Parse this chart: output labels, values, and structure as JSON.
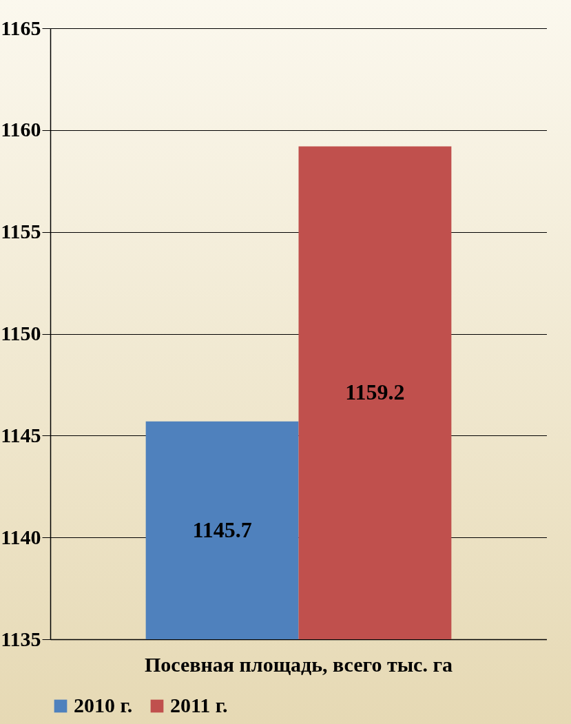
{
  "chart_data": {
    "type": "bar",
    "categories": [
      "Посевная площадь, всего тыс. га"
    ],
    "series": [
      {
        "name": "2010 г.",
        "color": "#4f81bd",
        "values": [
          1145.7
        ]
      },
      {
        "name": "2011 г.",
        "color": "#c0504d",
        "values": [
          1159.2
        ]
      }
    ],
    "ylim": [
      1135,
      1165
    ],
    "yticks": [
      1135,
      1140,
      1145,
      1150,
      1155,
      1160,
      1165
    ],
    "grid": "y",
    "legend": "bottom",
    "data_labels": true
  }
}
